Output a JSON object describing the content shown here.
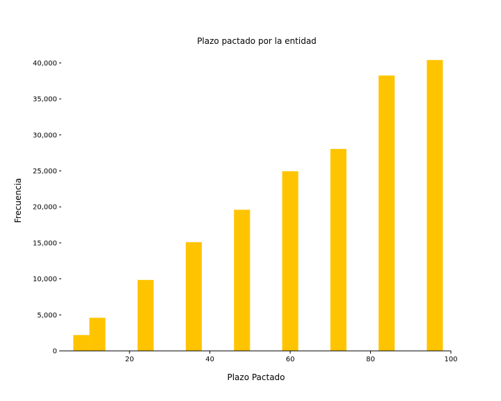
{
  "chart_data": {
    "type": "bar",
    "title": "Plazo pactado por la entidad",
    "xlabel": "Plazo Pactado",
    "ylabel": "Frecuencia",
    "x": [
      8,
      12,
      24,
      36,
      48,
      60,
      72,
      84,
      96
    ],
    "values": [
      2200,
      4600,
      9850,
      15100,
      19600,
      24950,
      28050,
      38250,
      40400
    ],
    "bar_width": 4,
    "xlim": [
      3,
      100
    ],
    "ylim": [
      0,
      41000
    ],
    "xticks": [
      20,
      40,
      60,
      80,
      100
    ],
    "yticks": [
      0,
      5000,
      10000,
      15000,
      20000,
      25000,
      30000,
      35000,
      40000
    ],
    "xtick_labels": [
      "20",
      "40",
      "60",
      "80",
      "100"
    ],
    "ytick_labels": [
      "0",
      "5,000",
      "10,000",
      "15,000",
      "20,000",
      "25,000",
      "30,000",
      "35,000",
      "40,000"
    ],
    "bar_color": "#FFC400",
    "grid": false,
    "legend": "none"
  }
}
